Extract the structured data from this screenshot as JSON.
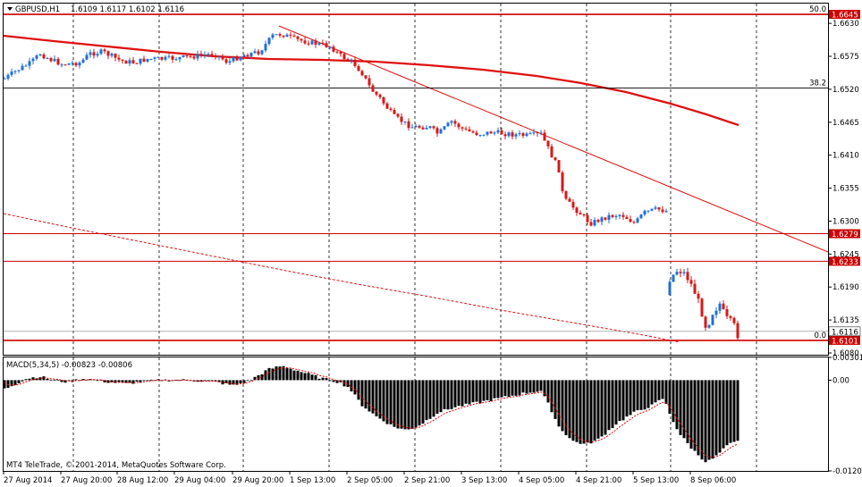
{
  "header": {
    "symbol_label": "GBPUSD,H1",
    "ohlc": "1.6109 1.6117 1.6102 1.6116"
  },
  "macd_label": "MACD(5,34,5) -0.00823 -0.00806",
  "copyright": "MT4 TeleTrade, © 2001-2014, MetaQuotes Software Corp.",
  "colors": {
    "bull": "#1f6fd6",
    "bear": "#d61818",
    "level": "#cc0000",
    "grid": "#000000",
    "hist": "#000000",
    "signal": "#e00000"
  },
  "chart_data": {
    "type": "candlestick",
    "price_ticks": [
      "1.6630",
      "1.6575",
      "1.6520",
      "1.6465",
      "1.6410",
      "1.6355",
      "1.6300",
      "1.6245",
      "1.6190",
      "1.6135",
      "1.6080"
    ],
    "price_range": [
      1.6077,
      1.6663
    ],
    "time_ticks": [
      "27 Aug 2014",
      "27 Aug 20:00",
      "28 Aug 12:00",
      "29 Aug 04:00",
      "29 Aug 20:00",
      "1 Sep 13:00",
      "2 Sep 05:00",
      "2 Sep 21:00",
      "3 Sep 13:00",
      "4 Sep 05:00",
      "4 Sep 21:00",
      "5 Sep 13:00",
      "8 Sep 06:00"
    ],
    "levels": [
      {
        "price": 1.6645,
        "label": "1.6645",
        "fib": "50.0"
      },
      {
        "price": 1.6279,
        "label": "1.6279"
      },
      {
        "price": 1.6233,
        "label": "1.6233"
      },
      {
        "price": 1.6101,
        "label": "1.6101",
        "fib": "0.0"
      }
    ],
    "fib_mid": {
      "price": 1.6522,
      "label": "38.2"
    },
    "current_price": {
      "price": 1.6116,
      "label": "1.6116"
    },
    "macd_ticks": [
      "0.00301",
      "0.00",
      "-0.01202"
    ],
    "macd_range": [
      -0.01202,
      0.00301
    ]
  }
}
